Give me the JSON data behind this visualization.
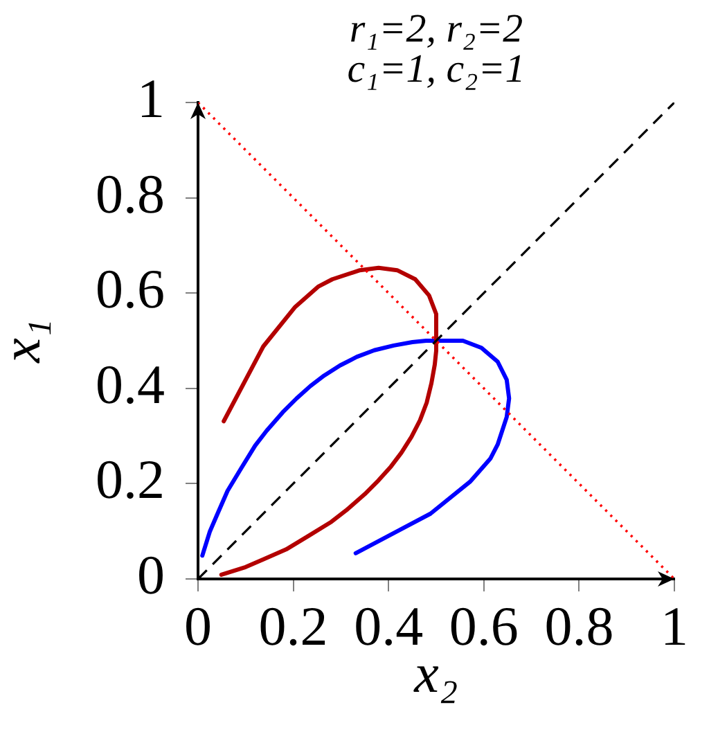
{
  "chart_data": {
    "type": "line",
    "title": "r₁=2, r₂=2",
    "subtitle": "c₁=1, c₂=1",
    "xlabel": "x₂",
    "ylabel": "x₁",
    "xlim": [
      0,
      1
    ],
    "ylim": [
      0,
      1
    ],
    "xticks": [
      0,
      0.2,
      0.4,
      0.6,
      0.8,
      1
    ],
    "yticks": [
      0,
      0.2,
      0.4,
      0.6,
      0.8,
      1
    ],
    "marker": "none",
    "series": [
      {
        "color": "#0000ff",
        "x": [
          0.009,
          0.025,
          0.041,
          0.062,
          0.091,
          0.12,
          0.144,
          0.178,
          0.207,
          0.236,
          0.265,
          0.298,
          0.333,
          0.37,
          0.411,
          0.45,
          0.479,
          0.556,
          0.595,
          0.629,
          0.648,
          0.653,
          0.648,
          0.629,
          0.614,
          0.571,
          0.488,
          0.331
        ],
        "values": [
          0.049,
          0.1,
          0.137,
          0.185,
          0.233,
          0.28,
          0.311,
          0.35,
          0.379,
          0.405,
          0.427,
          0.448,
          0.466,
          0.48,
          0.49,
          0.497,
          0.5,
          0.5,
          0.485,
          0.456,
          0.418,
          0.379,
          0.34,
          0.282,
          0.253,
          0.204,
          0.137,
          0.054
        ]
      },
      {
        "color": "#b30000",
        "x": [
          0.049,
          0.1,
          0.137,
          0.185,
          0.233,
          0.28,
          0.311,
          0.35,
          0.379,
          0.405,
          0.427,
          0.448,
          0.466,
          0.48,
          0.49,
          0.497,
          0.5,
          0.5,
          0.485,
          0.456,
          0.418,
          0.379,
          0.34,
          0.282,
          0.253,
          0.204,
          0.137,
          0.054
        ],
        "values": [
          0.009,
          0.025,
          0.041,
          0.062,
          0.091,
          0.12,
          0.144,
          0.178,
          0.207,
          0.236,
          0.265,
          0.298,
          0.333,
          0.37,
          0.411,
          0.45,
          0.479,
          0.556,
          0.595,
          0.629,
          0.648,
          0.653,
          0.648,
          0.629,
          0.614,
          0.571,
          0.488,
          0.331
        ]
      },
      {
        "color": "#000000",
        "line_style": "dashed",
        "x": [
          0,
          1
        ],
        "values": [
          0,
          1
        ]
      },
      {
        "color": "#ff0000",
        "line_style": "dotted",
        "x": [
          0,
          1
        ],
        "values": [
          1,
          0
        ]
      }
    ]
  }
}
